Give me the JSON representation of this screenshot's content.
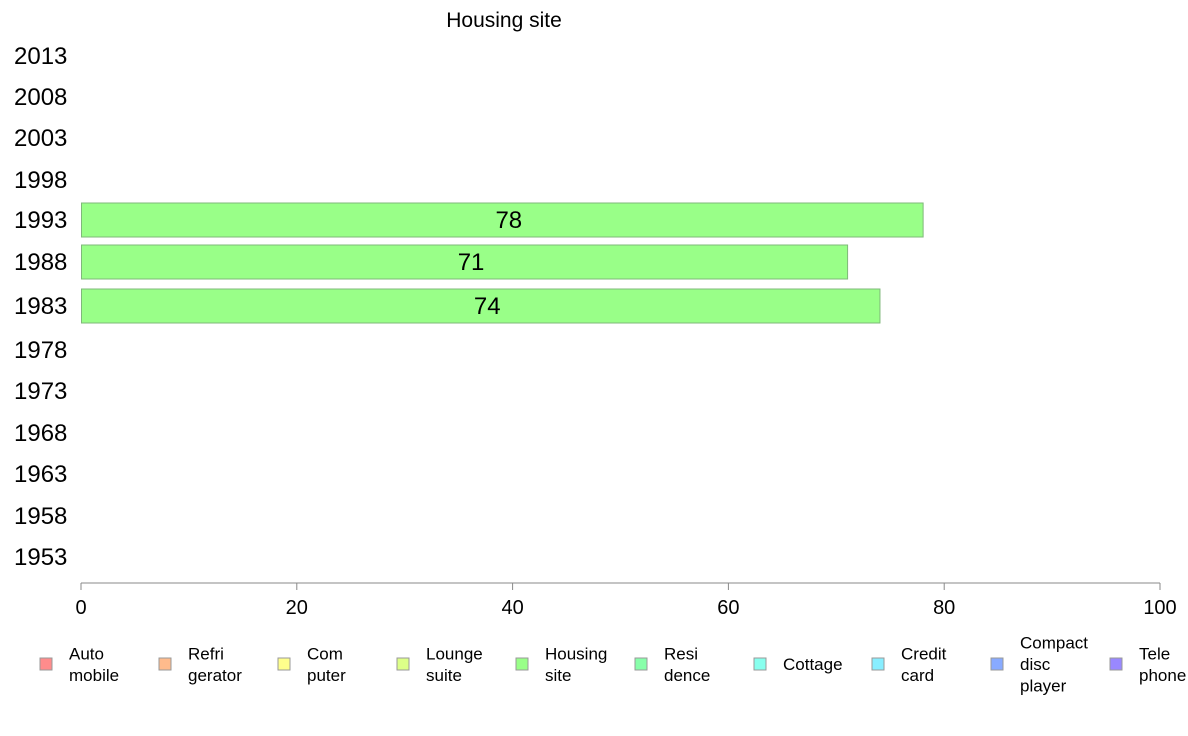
{
  "chart_data": {
    "type": "bar",
    "orientation": "horizontal",
    "title": "Housing site",
    "categories": [
      "2013",
      "2008",
      "2003",
      "1998",
      "1993",
      "1988",
      "1983",
      "1978",
      "1973",
      "1968",
      "1963",
      "1958",
      "1953"
    ],
    "series": [
      {
        "name": "Housing site",
        "color": "#99ff88",
        "values": [
          null,
          null,
          null,
          null,
          78,
          71,
          74,
          null,
          null,
          null,
          null,
          null,
          null
        ]
      }
    ],
    "xlim": [
      0,
      100
    ],
    "xticks": [
      "0",
      "20",
      "40",
      "60",
      "80",
      "100"
    ],
    "grid": false,
    "legend_position": "bottom",
    "legend": [
      {
        "lines": [
          "Auto",
          "mobile"
        ],
        "color": "#ff8c8c"
      },
      {
        "lines": [
          "Refri",
          "gerator"
        ],
        "color": "#ffbb8c"
      },
      {
        "lines": [
          "Com",
          "puter"
        ],
        "color": "#ffff8c"
      },
      {
        "lines": [
          "Lounge",
          "suite"
        ],
        "color": "#ddff88"
      },
      {
        "lines": [
          "Housing",
          "site"
        ],
        "color": "#99ff88"
      },
      {
        "lines": [
          "Resi",
          "dence"
        ],
        "color": "#88ffaa"
      },
      {
        "lines": [
          "Cottage"
        ],
        "color": "#88ffee"
      },
      {
        "lines": [
          "Credit",
          "card"
        ],
        "color": "#88eeff"
      },
      {
        "lines": [
          "Compact",
          "disc",
          "player"
        ],
        "color": "#88aaff"
      },
      {
        "lines": [
          "Tele",
          "phone"
        ],
        "color": "#9988ff"
      }
    ]
  }
}
